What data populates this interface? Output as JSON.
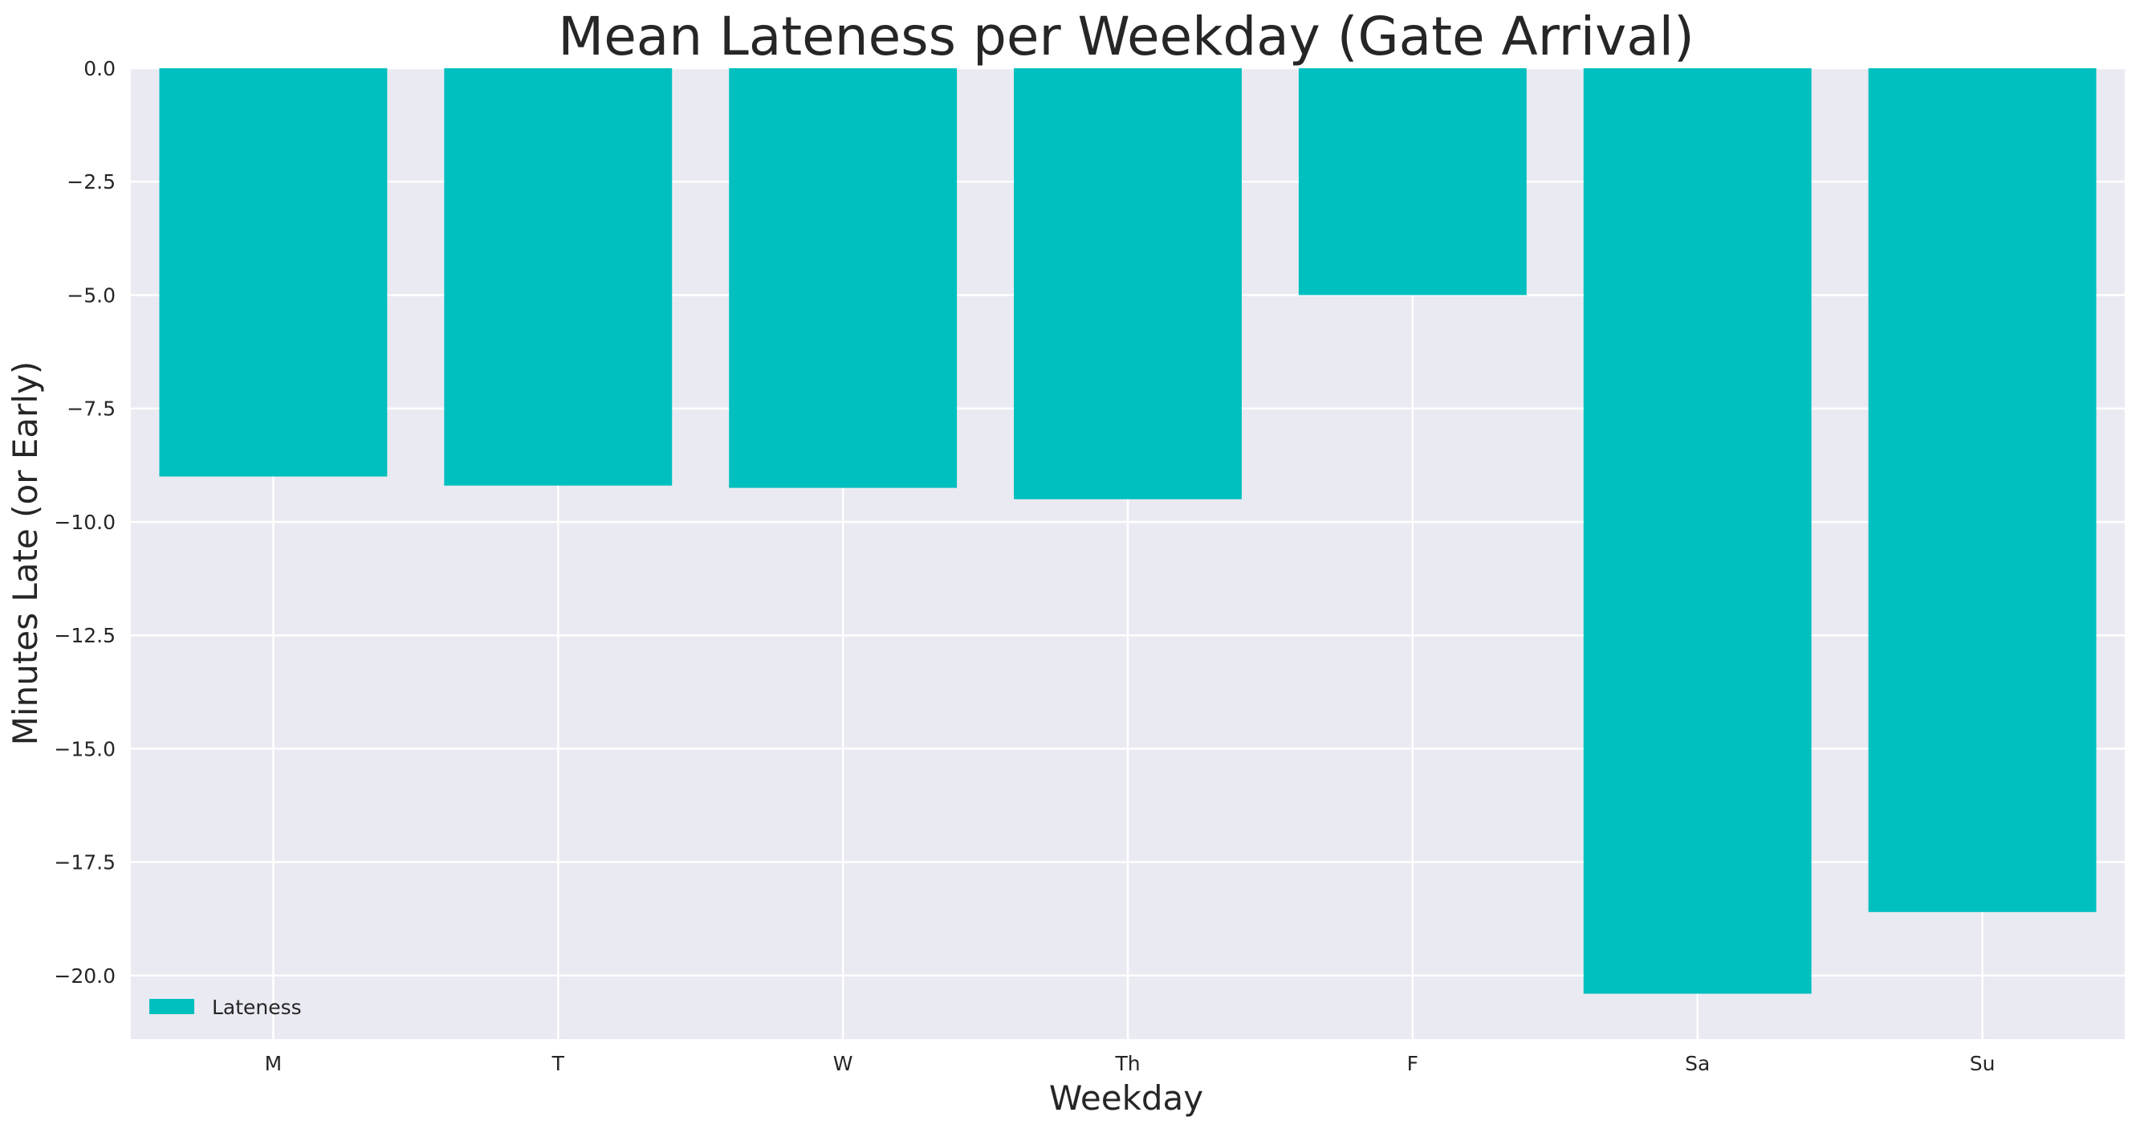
{
  "chart_data": {
    "type": "bar",
    "title": "Mean Lateness per Weekday (Gate Arrival)",
    "xlabel": "Weekday",
    "ylabel": "Minutes Late (or Early)",
    "categories": [
      "M",
      "T",
      "W",
      "Th",
      "F",
      "Sa",
      "Su"
    ],
    "series": [
      {
        "name": "Lateness",
        "values": [
          -9.0,
          -9.2,
          -9.25,
          -9.5,
          -5.0,
          -20.4,
          -18.6
        ]
      }
    ],
    "ylim": [
      -21.4,
      0.0
    ],
    "yticks": [
      0.0,
      -2.5,
      -5.0,
      -7.5,
      -10.0,
      -12.5,
      -15.0,
      -17.5,
      -20.0
    ],
    "ytick_labels": [
      "0.0",
      "−2.5",
      "−5.0",
      "−7.5",
      "−10.0",
      "−12.5",
      "−15.0",
      "−17.5",
      "−20.0"
    ],
    "grid": true,
    "legend_position": "lower-left",
    "colors": {
      "bar": "#00BFBF",
      "plot_background": "#EAEAF2",
      "grid": "#FFFFFF",
      "text": "#262626"
    }
  }
}
